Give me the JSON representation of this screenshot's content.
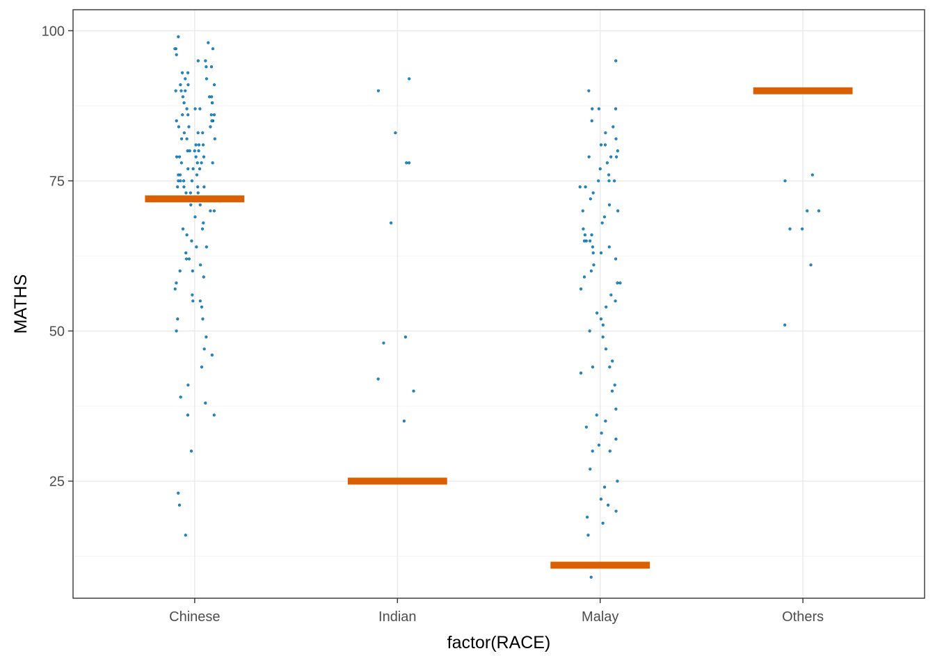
{
  "chart_data": {
    "type": "scatter",
    "title": "",
    "xlabel": "factor(RACE)",
    "ylabel": "MATHS",
    "categories": [
      "Chinese",
      "Indian",
      "Malay",
      "Others"
    ],
    "ylim": [
      5.5,
      103.5
    ],
    "y_ticks": [
      25,
      50,
      75,
      100
    ],
    "y_tick_labels": [
      "25",
      "50",
      "75",
      "100"
    ],
    "y_minor_ticks": [
      12.5,
      37.5,
      62.5,
      87.5
    ],
    "grid": true,
    "legend": "none",
    "colors": {
      "points": "#1f8fd6",
      "points_edge": "#0b5f8a",
      "summary_bar": "#d95f02",
      "panel_border": "#333333",
      "grid_major": "#ebebeb",
      "grid_minor": "#f4f4f4"
    },
    "summary_bars": [
      {
        "category": "Chinese",
        "value": 72
      },
      {
        "category": "Indian",
        "value": 25
      },
      {
        "category": "Malay",
        "value": 11
      },
      {
        "category": "Others",
        "value": 90
      }
    ],
    "series": [
      {
        "category": "Chinese",
        "values": [
          99,
          98,
          97,
          97,
          97,
          96,
          95,
          95,
          94,
          94,
          93,
          93,
          92,
          92,
          91,
          91,
          91,
          90,
          90,
          90,
          89,
          89,
          89,
          88,
          88,
          88,
          87,
          87,
          87,
          86,
          86,
          86,
          86,
          85,
          85,
          85,
          85,
          84,
          84,
          84,
          83,
          83,
          83,
          82,
          82,
          82,
          81,
          81,
          81,
          80,
          80,
          80,
          80,
          79,
          79,
          79,
          79,
          78,
          78,
          78,
          78,
          77,
          77,
          77,
          76,
          76,
          76,
          75,
          75,
          75,
          75,
          74,
          74,
          74,
          74,
          73,
          73,
          73,
          72,
          72,
          71,
          71,
          70,
          70,
          69,
          68,
          67,
          67,
          66,
          65,
          64,
          64,
          63,
          62,
          62,
          61,
          60,
          60,
          59,
          58,
          57,
          56,
          55,
          55,
          54,
          52,
          52,
          50,
          49,
          47,
          46,
          44,
          41,
          39,
          38,
          36,
          36,
          30,
          23,
          21,
          16
        ]
      },
      {
        "category": "Indian",
        "values": [
          92,
          90,
          83,
          78,
          78,
          68,
          49,
          48,
          42,
          40,
          35
        ]
      },
      {
        "category": "Malay",
        "values": [
          95,
          90,
          87,
          87,
          87,
          85,
          84,
          83,
          82,
          81,
          81,
          80,
          79,
          79,
          79,
          78,
          77,
          76,
          75,
          75,
          75,
          74,
          74,
          73,
          72,
          71,
          70,
          70,
          69,
          68,
          67,
          66,
          66,
          65,
          65,
          65,
          64,
          64,
          63,
          63,
          62,
          61,
          60,
          59,
          58,
          58,
          57,
          56,
          55,
          54,
          53,
          52,
          51,
          50,
          49,
          47,
          45,
          44,
          44,
          43,
          41,
          40,
          37,
          36,
          35,
          34,
          33,
          32,
          31,
          30,
          30,
          27,
          25,
          24,
          22,
          21,
          20,
          19,
          18,
          16,
          9
        ]
      },
      {
        "category": "Others",
        "values": [
          76,
          75,
          70,
          70,
          67,
          67,
          61,
          51
        ]
      }
    ]
  }
}
